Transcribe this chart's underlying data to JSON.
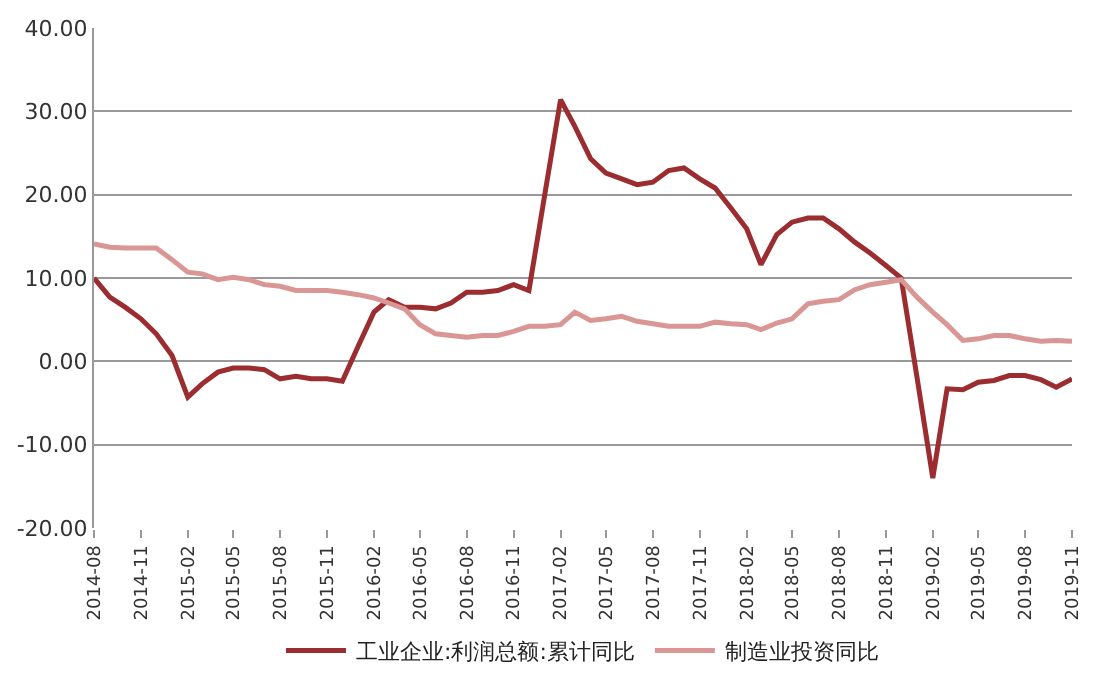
{
  "chart_data": {
    "type": "line",
    "x": [
      "2014-08",
      "2014-09",
      "2014-10",
      "2014-11",
      "2014-12",
      "2015-01",
      "2015-02",
      "2015-03",
      "2015-04",
      "2015-05",
      "2015-06",
      "2015-07",
      "2015-08",
      "2015-09",
      "2015-10",
      "2015-11",
      "2015-12",
      "2016-01",
      "2016-02",
      "2016-03",
      "2016-04",
      "2016-05",
      "2016-06",
      "2016-07",
      "2016-08",
      "2016-09",
      "2016-10",
      "2016-11",
      "2016-12",
      "2017-01",
      "2017-02",
      "2017-03",
      "2017-04",
      "2017-05",
      "2017-06",
      "2017-07",
      "2017-08",
      "2017-09",
      "2017-10",
      "2017-11",
      "2017-12",
      "2018-01",
      "2018-02",
      "2018-03",
      "2018-04",
      "2018-05",
      "2018-06",
      "2018-07",
      "2018-08",
      "2018-09",
      "2018-10",
      "2018-11",
      "2018-12",
      "2019-01",
      "2019-02",
      "2019-03",
      "2019-04",
      "2019-05",
      "2019-06",
      "2019-07",
      "2019-08",
      "2019-09",
      "2019-10",
      "2019-11"
    ],
    "series": [
      {
        "name": "工业企业:利润总额:累计同比",
        "color": "#9b2d30",
        "values": [
          10.0,
          7.7,
          6.5,
          5.1,
          3.3,
          0.7,
          -4.3,
          -2.7,
          -1.3,
          -0.8,
          -0.8,
          -1.0,
          -2.1,
          -1.8,
          -2.1,
          -2.1,
          -2.4,
          1.8,
          5.9,
          7.4,
          6.5,
          6.5,
          6.3,
          7.0,
          8.3,
          8.3,
          8.5,
          9.2,
          8.5,
          20.0,
          31.4,
          28.2,
          24.3,
          22.6,
          21.9,
          21.2,
          21.5,
          22.9,
          23.2,
          21.9,
          20.8,
          18.4,
          15.9,
          11.6,
          15.2,
          16.7,
          17.2,
          17.2,
          15.9,
          14.3,
          13.0,
          11.5,
          10.0,
          -1.9,
          -14.0,
          -3.3,
          -3.4,
          -2.5,
          -2.3,
          -1.7,
          -1.7,
          -2.2,
          -3.1,
          -2.1
        ]
      },
      {
        "name": "制造业投资同比",
        "color": "#d99694",
        "values": [
          14.1,
          13.7,
          13.6,
          13.6,
          13.6,
          12.2,
          10.7,
          10.5,
          9.8,
          10.1,
          9.8,
          9.2,
          9.0,
          8.5,
          8.5,
          8.5,
          8.3,
          8.0,
          7.6,
          7.0,
          6.3,
          4.4,
          3.3,
          3.1,
          2.9,
          3.1,
          3.1,
          3.6,
          4.2,
          4.2,
          4.4,
          5.9,
          4.9,
          5.1,
          5.4,
          4.8,
          4.5,
          4.2,
          4.2,
          4.2,
          4.7,
          4.5,
          4.4,
          3.8,
          4.6,
          5.1,
          6.9,
          7.2,
          7.4,
          8.6,
          9.2,
          9.5,
          9.8,
          7.7,
          5.9,
          4.4,
          2.5,
          2.7,
          3.1,
          3.1,
          2.7,
          2.4,
          2.5,
          2.4
        ]
      }
    ],
    "xlim": [
      "2014-08",
      "2019-11"
    ],
    "xticks": [
      "2014-08",
      "2014-11",
      "2015-02",
      "2015-05",
      "2015-08",
      "2015-11",
      "2016-02",
      "2016-05",
      "2016-08",
      "2016-11",
      "2017-02",
      "2017-05",
      "2017-08",
      "2017-11",
      "2018-02",
      "2018-05",
      "2018-08",
      "2018-11",
      "2019-02",
      "2019-05",
      "2019-08",
      "2019-11"
    ],
    "ylim": [
      -20,
      40
    ],
    "yticks": [
      {
        "value": -20,
        "label": "-20.00"
      },
      {
        "value": -10,
        "label": "-10.00"
      },
      {
        "value": 0,
        "label": "0.00"
      },
      {
        "value": 10,
        "label": "10.00"
      },
      {
        "value": 20,
        "label": "20.00"
      },
      {
        "value": 30,
        "label": "30.00"
      },
      {
        "value": 40,
        "label": "40.00"
      }
    ],
    "grid": "y",
    "legend": "bottom",
    "marker": "none",
    "line_style": "solid"
  }
}
